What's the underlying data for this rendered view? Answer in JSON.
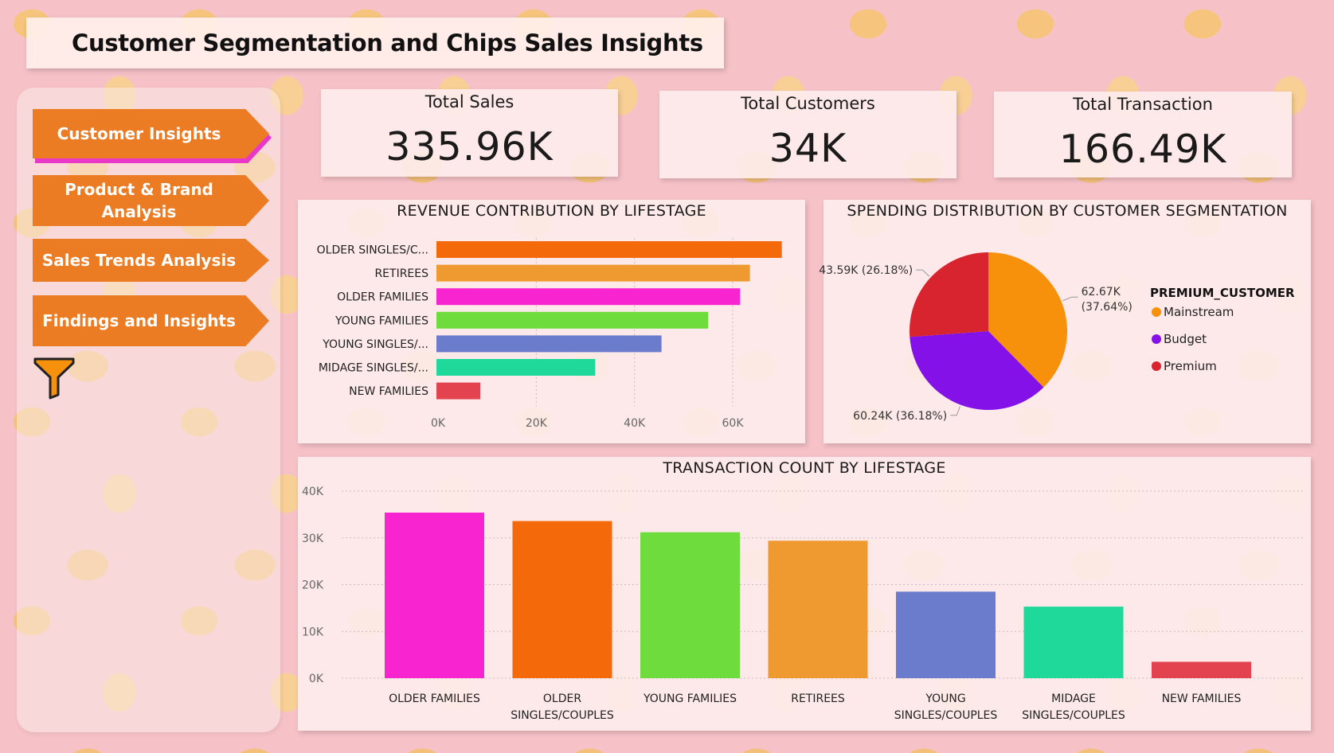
{
  "title": "Customer Segmentation and Chips Sales Insights",
  "nav": [
    {
      "label": "Customer Insights",
      "active": true
    },
    {
      "label": "Product & Brand Analysis",
      "active": false
    },
    {
      "label": "Sales Trends Analysis",
      "active": false
    },
    {
      "label": "Findings and Insights",
      "active": false
    }
  ],
  "filter_icon": "funnel-icon",
  "kpis": [
    {
      "label": "Total Sales",
      "value": "335.96K"
    },
    {
      "label": "Total Customers",
      "value": "34K"
    },
    {
      "label": "Total Transaction",
      "value": "166.49K"
    }
  ],
  "colors": {
    "accent": "#ec7c24",
    "older_singles": "#f4690a",
    "retirees": "#ee9a30",
    "older_families": "#f724d0",
    "young_families": "#6ddc3c",
    "young_singles": "#6b7ccc",
    "midage_singles": "#1ed99a",
    "new_families": "#e2434f",
    "mainstream": "#f7900a",
    "budget": "#8412e8",
    "premium": "#d8242f"
  },
  "chart_data": [
    {
      "type": "bar",
      "orientation": "horizontal",
      "title": "REVENUE CONTRIBUTION BY LIFESTAGE",
      "categories": [
        "OLDER SINGLES/C...",
        "RETIREES",
        "OLDER FAMILIES",
        "YOUNG FAMILIES",
        "YOUNG SINGLES/...",
        "MIDAGE SINGLES/...",
        "NEW FAMILIES"
      ],
      "values": [
        70000,
        63500,
        61500,
        55000,
        45500,
        32000,
        8600
      ],
      "colors": [
        "#f4690a",
        "#ee9a30",
        "#f724d0",
        "#6ddc3c",
        "#6b7ccc",
        "#1ed99a",
        "#e2434f"
      ],
      "xticks": [
        "0K",
        "20K",
        "40K",
        "60K"
      ],
      "xtick_values": [
        0,
        20000,
        40000,
        60000
      ],
      "xlim": [
        0,
        72000
      ],
      "grid": true
    },
    {
      "type": "pie",
      "title": "SPENDING DISTRIBUTION BY CUSTOMER SEGMENTATION",
      "legend_title": "PREMIUM_CUSTOMER",
      "legend_position": "right",
      "slices": [
        {
          "name": "Mainstream",
          "value": 62.67,
          "percent": 37.64,
          "label_line1": "62.67K",
          "label_line2": "(37.64%)",
          "color": "#f7900a"
        },
        {
          "name": "Budget",
          "value": 60.24,
          "percent": 36.18,
          "label_line1": "60.24K (36.18%)",
          "label_line2": "",
          "color": "#8412e8"
        },
        {
          "name": "Premium",
          "value": 43.59,
          "percent": 26.18,
          "label_line1": "43.59K (26.18%)",
          "label_line2": "",
          "color": "#d8242f"
        }
      ]
    },
    {
      "type": "bar",
      "orientation": "vertical",
      "title": "TRANSACTION COUNT BY LIFESTAGE",
      "categories": [
        [
          "OLDER FAMILIES"
        ],
        [
          "OLDER",
          "SINGLES/COUPLES"
        ],
        [
          "YOUNG FAMILIES"
        ],
        [
          "RETIREES"
        ],
        [
          "YOUNG",
          "SINGLES/COUPLES"
        ],
        [
          "MIDAGE",
          "SINGLES/COUPLES"
        ],
        [
          "NEW FAMILIES"
        ]
      ],
      "values": [
        35400,
        33600,
        31200,
        29400,
        18500,
        15300,
        3500
      ],
      "colors": [
        "#f724d0",
        "#f4690a",
        "#6ddc3c",
        "#ee9a30",
        "#6b7ccc",
        "#1ed99a",
        "#e2434f"
      ],
      "yticks": [
        "0K",
        "10K",
        "20K",
        "30K",
        "40K"
      ],
      "ytick_values": [
        0,
        10000,
        20000,
        30000,
        40000
      ],
      "ylim": [
        0,
        40000
      ],
      "grid": true
    }
  ]
}
